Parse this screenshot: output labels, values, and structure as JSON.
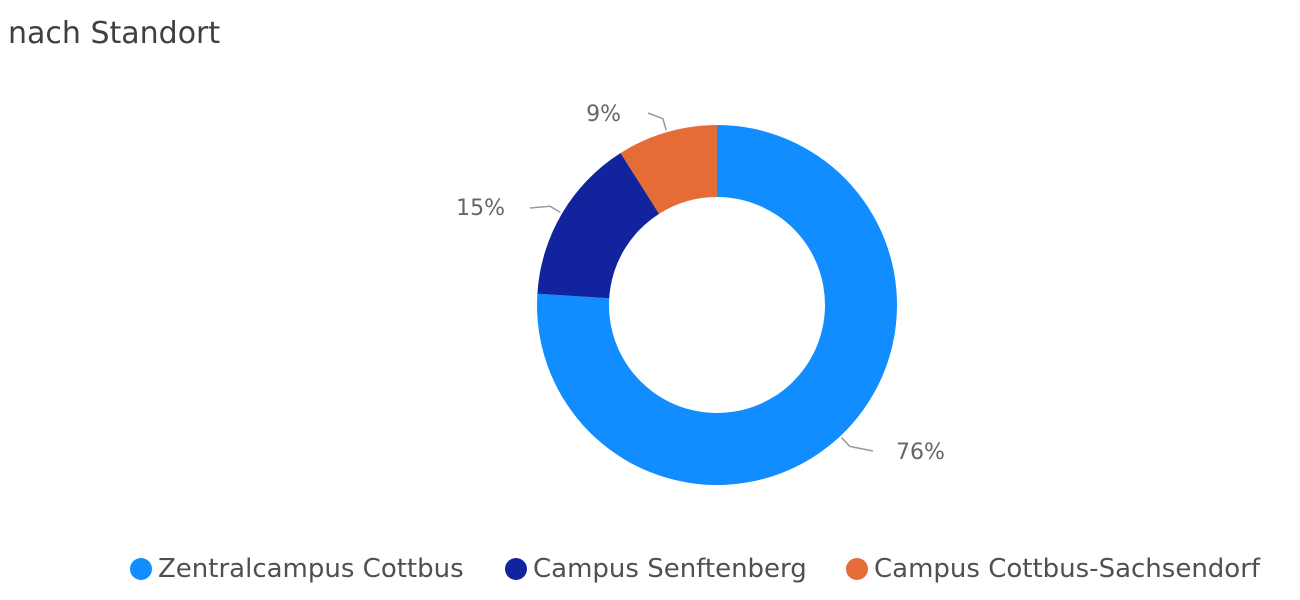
{
  "chart_data": {
    "type": "pie",
    "title": "nach Standort",
    "categories": [
      "Zentralcampus Cottbus",
      "Campus Senftenberg",
      "Campus Cottbus-Sachsendorf"
    ],
    "values": [
      76,
      15,
      9
    ],
    "data_labels": [
      "76%",
      "15%",
      "9%"
    ],
    "colors": [
      "#118DFF",
      "#12239E",
      "#E66C37"
    ],
    "donut": true,
    "legend_position": "bottom"
  }
}
